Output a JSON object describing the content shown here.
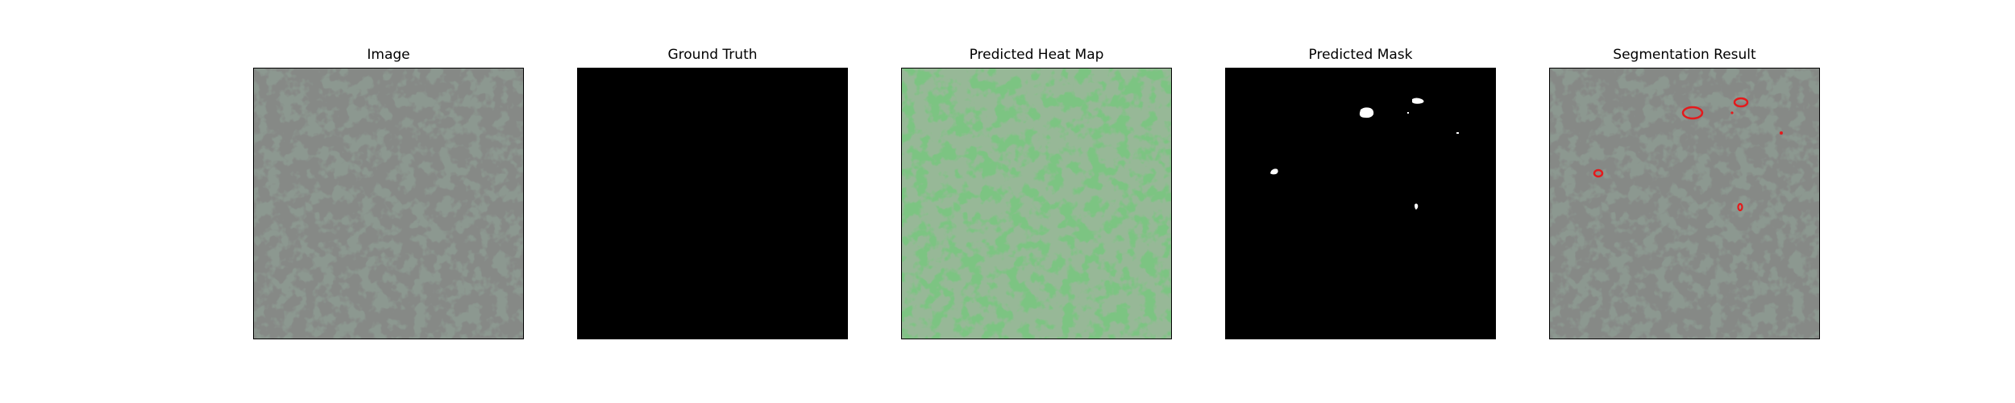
{
  "figure": {
    "panels": [
      {
        "id": "image",
        "title": "Image"
      },
      {
        "id": "ground-truth",
        "title": "Ground Truth"
      },
      {
        "id": "heat-map",
        "title": "Predicted Heat Map"
      },
      {
        "id": "mask",
        "title": "Predicted Mask"
      },
      {
        "id": "segmentation",
        "title": "Segmentation Result"
      }
    ]
  },
  "colors": {
    "texture_base": "#8c9890",
    "texture_spot": "#3d403d",
    "ground_truth_bg": "#000000",
    "heat_base": "#7cc482",
    "heat_spot": "#4e7a4e",
    "mask_bg": "#000000",
    "mask_region": "#ffffff",
    "segmentation_outline": "#e41a1c"
  }
}
